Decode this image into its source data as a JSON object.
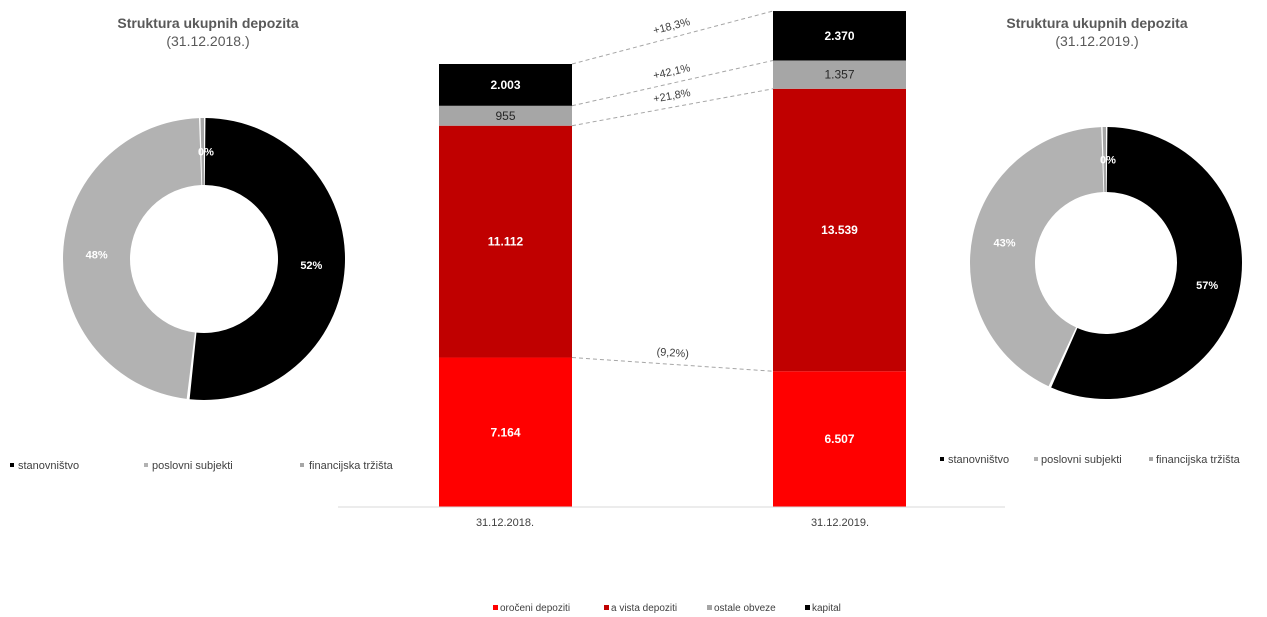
{
  "chart_data": [
    {
      "type": "pie",
      "variant": "donut",
      "title": "Struktura ukupnih depozita",
      "subtitle": "(31.12.2018.)",
      "legend": [
        "stanovništvo",
        "poslovni subjekti",
        "financijska tržišta"
      ],
      "slice_labels": [
        "52%",
        "48%",
        "0%"
      ],
      "values": [
        52,
        48,
        0.4
      ],
      "colors": [
        "#000000",
        "#b2b2b2",
        "#a6a6a6"
      ],
      "legend_position": "bottom"
    },
    {
      "type": "bar",
      "stacked": true,
      "categories": [
        "31.12.2018.",
        "31.12.2019."
      ],
      "series": [
        {
          "name": "oročeni depoziti",
          "values": [
            7164,
            6507
          ],
          "labels": [
            "7.164",
            "6.507"
          ],
          "color": "#ff0000"
        },
        {
          "name": "a vista depoziti",
          "values": [
            11112,
            13539
          ],
          "labels": [
            "11.112",
            "13.539"
          ],
          "color": "#c00000"
        },
        {
          "name": "ostale obveze",
          "values": [
            955,
            1357
          ],
          "labels": [
            "955",
            "1.357"
          ],
          "color": "#a6a6a6"
        },
        {
          "name": "kapital",
          "values": [
            2003,
            2370
          ],
          "labels": [
            "2.003",
            "2.370"
          ],
          "color": "#000000"
        }
      ],
      "changes": [
        "(9,2%)",
        "+21,8%",
        "+42,1%",
        "+18,3%"
      ],
      "legend_position": "bottom"
    },
    {
      "type": "pie",
      "variant": "donut",
      "title": "Struktura ukupnih depozita",
      "subtitle": "(31.12.2019.)",
      "legend": [
        "stanovništvo",
        "poslovni subjekti",
        "financijska tržišta"
      ],
      "slice_labels": [
        "57%",
        "43%",
        "0%"
      ],
      "values": [
        57,
        43,
        0.4
      ],
      "colors": [
        "#000000",
        "#b2b2b2",
        "#a6a6a6"
      ],
      "legend_position": "bottom"
    }
  ]
}
